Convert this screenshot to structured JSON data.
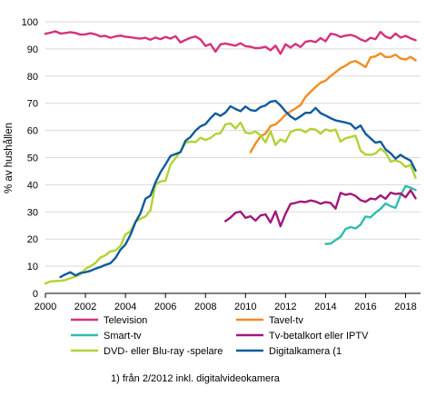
{
  "chart_data": {
    "type": "line",
    "ylabel": "% av hushållen",
    "xlabel": "",
    "ylim": [
      0,
      100
    ],
    "xlim": [
      2000,
      2018.75
    ],
    "yticks": [
      0,
      10,
      20,
      30,
      40,
      50,
      60,
      70,
      80,
      90,
      100
    ],
    "xticks": [
      2000,
      2002,
      2004,
      2006,
      2008,
      2010,
      2012,
      2014,
      2016,
      2018
    ],
    "grid": "horizontal",
    "legend_position": "bottom",
    "footnote": "1) från 2/2012 inkl. digitalvideokamera",
    "series": [
      {
        "name": "Television",
        "color": "#d6317c",
        "x": [
          2000.0,
          2000.25,
          2000.5,
          2000.75,
          2001.0,
          2001.25,
          2001.5,
          2001.75,
          2002.0,
          2002.25,
          2002.5,
          2002.75,
          2003.0,
          2003.25,
          2003.5,
          2003.75,
          2004.0,
          2004.25,
          2004.5,
          2004.75,
          2005.0,
          2005.25,
          2005.5,
          2005.75,
          2006.0,
          2006.25,
          2006.5,
          2006.75,
          2007.0,
          2007.25,
          2007.5,
          2007.75,
          2008.0,
          2008.25,
          2008.5,
          2008.75,
          2009.0,
          2009.25,
          2009.5,
          2009.75,
          2010.0,
          2010.25,
          2010.5,
          2010.75,
          2011.0,
          2011.25,
          2011.5,
          2011.75,
          2012.0,
          2012.25,
          2012.5,
          2012.75,
          2013.0,
          2013.25,
          2013.5,
          2013.75,
          2014.0,
          2014.25,
          2014.5,
          2014.75,
          2015.0,
          2015.25,
          2015.5,
          2015.75,
          2016.0,
          2016.25,
          2016.5,
          2016.75,
          2017.0,
          2017.25,
          2017.5,
          2017.75,
          2018.0,
          2018.25,
          2018.5
        ],
        "values": [
          95.6,
          96.0,
          96.5,
          95.7,
          95.9,
          96.2,
          95.9,
          95.3,
          95.4,
          95.8,
          95.4,
          94.6,
          94.8,
          94.1,
          94.6,
          94.9,
          94.5,
          94.3,
          94.0,
          93.8,
          94.1,
          93.4,
          94.2,
          93.6,
          94.4,
          93.8,
          94.7,
          92.4,
          93.3,
          94.1,
          94.6,
          93.5,
          91.1,
          91.8,
          89.0,
          91.7,
          92.0,
          91.6,
          91.2,
          92.1,
          91.0,
          90.8,
          90.3,
          90.4,
          90.8,
          89.5,
          91.2,
          88.2,
          91.7,
          90.5,
          91.9,
          90.7,
          92.6,
          93.0,
          92.5,
          94.0,
          92.8,
          95.6,
          95.3,
          94.4,
          94.9,
          95.2,
          94.6,
          93.5,
          92.8,
          94.1,
          93.6,
          96.3,
          94.5,
          93.9,
          95.7,
          94.2,
          94.8,
          93.9,
          93.2
        ]
      },
      {
        "name": "Tavel-tv",
        "color": "#f28b21",
        "x": [
          2010.25,
          2010.5,
          2010.75,
          2011.0,
          2011.25,
          2011.5,
          2011.75,
          2012.0,
          2012.25,
          2012.5,
          2012.75,
          2013.0,
          2013.25,
          2013.5,
          2013.75,
          2014.0,
          2014.25,
          2014.5,
          2014.75,
          2015.0,
          2015.25,
          2015.5,
          2015.75,
          2016.0,
          2016.25,
          2016.5,
          2016.75,
          2017.0,
          2017.25,
          2017.5,
          2017.75,
          2018.0,
          2018.25,
          2018.5
        ],
        "values": [
          52.0,
          55.2,
          57.8,
          58.8,
          61.6,
          62.2,
          63.8,
          65.8,
          67.0,
          68.1,
          69.3,
          72.3,
          74.2,
          76.0,
          77.6,
          78.3,
          80.0,
          81.4,
          82.9,
          83.8,
          85.1,
          85.6,
          84.5,
          83.3,
          86.9,
          87.3,
          88.4,
          87.0,
          87.1,
          87.9,
          86.5,
          86.1,
          87.1,
          85.8
        ]
      },
      {
        "name": "Smart-tv",
        "color": "#2fbcae",
        "x": [
          2014.0,
          2014.25,
          2014.5,
          2014.75,
          2015.0,
          2015.25,
          2015.5,
          2015.75,
          2016.0,
          2016.25,
          2016.5,
          2016.75,
          2017.0,
          2017.25,
          2017.5,
          2017.75,
          2018.0,
          2018.25,
          2018.5
        ],
        "values": [
          18.2,
          18.3,
          19.6,
          20.8,
          23.7,
          24.4,
          23.9,
          25.3,
          28.3,
          28.0,
          29.7,
          31.1,
          33.1,
          32.1,
          31.5,
          36.2,
          39.5,
          38.9,
          38.1
        ]
      },
      {
        "name": "Tv-betalkort eller IPTV",
        "color": "#a1187a",
        "x": [
          2009.0,
          2009.25,
          2009.5,
          2009.75,
          2010.0,
          2010.25,
          2010.5,
          2010.75,
          2011.0,
          2011.25,
          2011.5,
          2011.75,
          2012.0,
          2012.25,
          2012.5,
          2012.75,
          2013.0,
          2013.25,
          2013.5,
          2013.75,
          2014.0,
          2014.25,
          2014.5,
          2014.75,
          2015.0,
          2015.25,
          2015.5,
          2015.75,
          2016.0,
          2016.25,
          2016.5,
          2016.75,
          2017.0,
          2017.25,
          2017.5,
          2017.75,
          2018.0,
          2018.25,
          2018.5
        ],
        "values": [
          26.6,
          27.9,
          29.7,
          30.1,
          27.8,
          28.4,
          26.8,
          28.7,
          29.1,
          26.1,
          30.2,
          24.7,
          29.3,
          32.9,
          33.3,
          33.8,
          33.6,
          34.2,
          33.8,
          33.0,
          33.6,
          33.3,
          31.2,
          37.0,
          36.3,
          36.7,
          35.9,
          34.3,
          33.7,
          34.9,
          34.6,
          36.1,
          34.8,
          37.1,
          36.6,
          36.8,
          35.4,
          38.0,
          35.0
        ]
      },
      {
        "name": "DVD- eller Blu-ray -spelare",
        "color": "#b1d234",
        "x": [
          2000.0,
          2000.25,
          2000.5,
          2000.75,
          2001.0,
          2001.25,
          2001.5,
          2001.75,
          2002.0,
          2002.25,
          2002.5,
          2002.75,
          2003.0,
          2003.25,
          2003.5,
          2003.75,
          2004.0,
          2004.25,
          2004.5,
          2004.75,
          2005.0,
          2005.25,
          2005.5,
          2005.75,
          2006.0,
          2006.25,
          2006.5,
          2006.75,
          2007.0,
          2007.25,
          2007.5,
          2007.75,
          2008.0,
          2008.25,
          2008.5,
          2008.75,
          2009.0,
          2009.25,
          2009.5,
          2009.75,
          2010.0,
          2010.25,
          2010.5,
          2010.75,
          2011.0,
          2011.25,
          2011.5,
          2011.75,
          2012.0,
          2012.25,
          2012.5,
          2012.75,
          2013.0,
          2013.25,
          2013.5,
          2013.75,
          2014.0,
          2014.25,
          2014.5,
          2014.75,
          2015.0,
          2015.25,
          2015.5,
          2015.75,
          2016.0,
          2016.25,
          2016.5,
          2016.75,
          2017.0,
          2017.25,
          2017.5,
          2017.75,
          2018.0,
          2018.25,
          2018.5
        ],
        "values": [
          3.6,
          4.4,
          4.5,
          4.6,
          4.9,
          5.6,
          6.2,
          7.0,
          9.0,
          10.0,
          11.2,
          13.2,
          14.0,
          15.5,
          15.8,
          17.5,
          21.7,
          22.8,
          26.3,
          27.5,
          28.3,
          30.6,
          40.1,
          41.2,
          41.5,
          47.4,
          49.8,
          52.3,
          55.5,
          55.9,
          55.7,
          57.3,
          56.5,
          57.2,
          58.7,
          59.0,
          62.2,
          62.6,
          60.7,
          62.9,
          59.2,
          58.9,
          59.6,
          58.2,
          55.6,
          59.7,
          54.6,
          56.7,
          55.8,
          59.4,
          60.2,
          60.3,
          59.3,
          60.6,
          60.3,
          58.8,
          60.4,
          59.8,
          60.3,
          55.9,
          57.1,
          57.6,
          58.1,
          52.6,
          51.1,
          51.0,
          51.5,
          53.3,
          51.8,
          48.5,
          49.0,
          48.3,
          46.6,
          47.3,
          42.5
        ]
      },
      {
        "name": "Digitalkamera (1",
        "color": "#0f5a9c",
        "x": [
          2000.75,
          2001.0,
          2001.25,
          2001.5,
          2001.75,
          2002.0,
          2002.25,
          2002.5,
          2002.75,
          2003.0,
          2003.25,
          2003.5,
          2003.75,
          2004.0,
          2004.25,
          2004.5,
          2004.75,
          2005.0,
          2005.25,
          2005.5,
          2005.75,
          2006.0,
          2006.25,
          2006.5,
          2006.75,
          2007.0,
          2007.25,
          2007.5,
          2007.75,
          2008.0,
          2008.25,
          2008.5,
          2008.75,
          2009.0,
          2009.25,
          2009.5,
          2009.75,
          2010.0,
          2010.25,
          2010.5,
          2010.75,
          2011.0,
          2011.25,
          2011.5,
          2011.75,
          2012.0,
          2012.25,
          2012.5,
          2012.75,
          2013.0,
          2013.25,
          2013.5,
          2013.75,
          2014.0,
          2014.25,
          2014.5,
          2014.75,
          2015.0,
          2015.25,
          2015.5,
          2015.75,
          2016.0,
          2016.25,
          2016.5,
          2016.75,
          2017.0,
          2017.25,
          2017.5,
          2017.75,
          2018.0,
          2018.25,
          2018.5
        ],
        "values": [
          6.0,
          7.0,
          7.8,
          6.6,
          7.5,
          7.8,
          8.3,
          9.1,
          9.7,
          10.5,
          11.1,
          13.0,
          16.1,
          18.0,
          21.5,
          26.2,
          29.5,
          34.8,
          36.0,
          40.8,
          44.6,
          47.5,
          50.6,
          51.3,
          52.0,
          56.2,
          57.6,
          59.9,
          61.5,
          62.3,
          64.5,
          66.3,
          65.4,
          66.6,
          68.9,
          67.9,
          67.1,
          68.8,
          67.5,
          67.2,
          68.6,
          69.2,
          70.6,
          70.9,
          69.2,
          67.0,
          65.2,
          64.0,
          65.2,
          66.5,
          66.5,
          68.3,
          66.4,
          65.5,
          64.5,
          63.7,
          63.3,
          62.9,
          62.4,
          60.6,
          61.8,
          58.8,
          57.1,
          55.5,
          55.9,
          53.0,
          51.6,
          49.6,
          51.0,
          49.8,
          48.9,
          45.2
        ]
      }
    ]
  }
}
